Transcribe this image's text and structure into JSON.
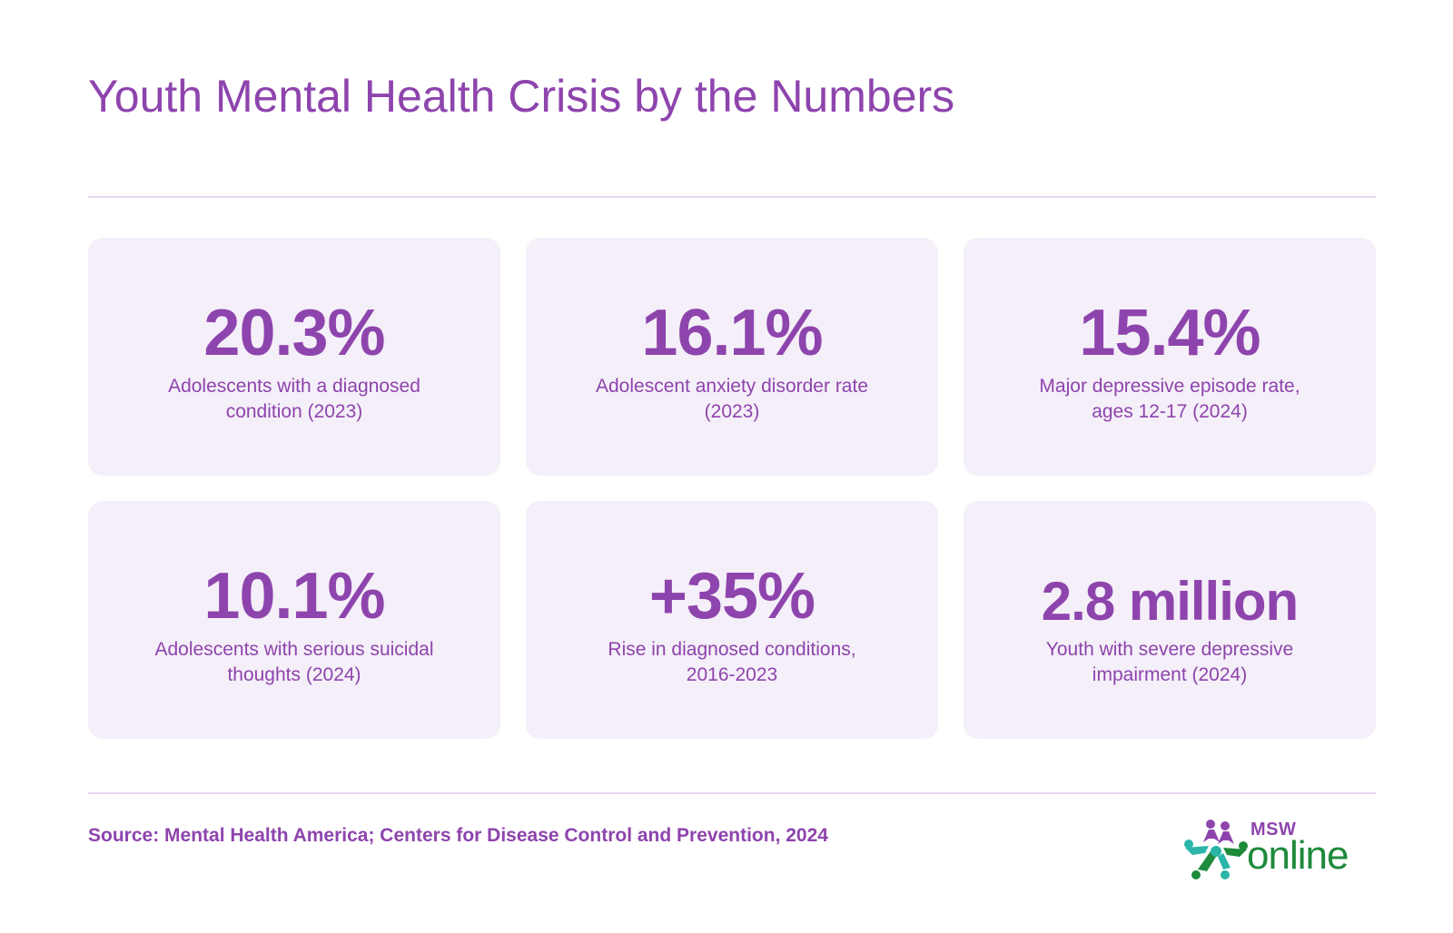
{
  "title": "Youth Mental Health Crisis by the Numbers",
  "stats": [
    {
      "value": "20.3%",
      "label": "Adolescents with a diagnosed condition (2023)"
    },
    {
      "value": "16.1%",
      "label": "Adolescent anxiety disorder rate (2023)"
    },
    {
      "value": "15.4%",
      "label": "Major depressive episode rate, ages 12-17 (2024)"
    },
    {
      "value": "10.1%",
      "label": "Adolescents with serious suicidal thoughts (2024)"
    },
    {
      "value": "+35%",
      "label": "Rise in diagnosed conditions, 2016-2023"
    },
    {
      "value": "2.8 million",
      "label": "Youth with severe depressive impairment (2024)"
    }
  ],
  "source": "Source: Mental Health America; Centers for Disease Control and Prevention, 2024",
  "logo": {
    "top_text": "MSW",
    "bottom_text": "online",
    "icon": "star-people-logo-icon"
  },
  "colors": {
    "accent": "#8e44ad",
    "card_background": "#f4eff8",
    "divider": "#e8d8f1",
    "logo_green": "#1e8a3c",
    "logo_teal": "#2bb5a8"
  }
}
